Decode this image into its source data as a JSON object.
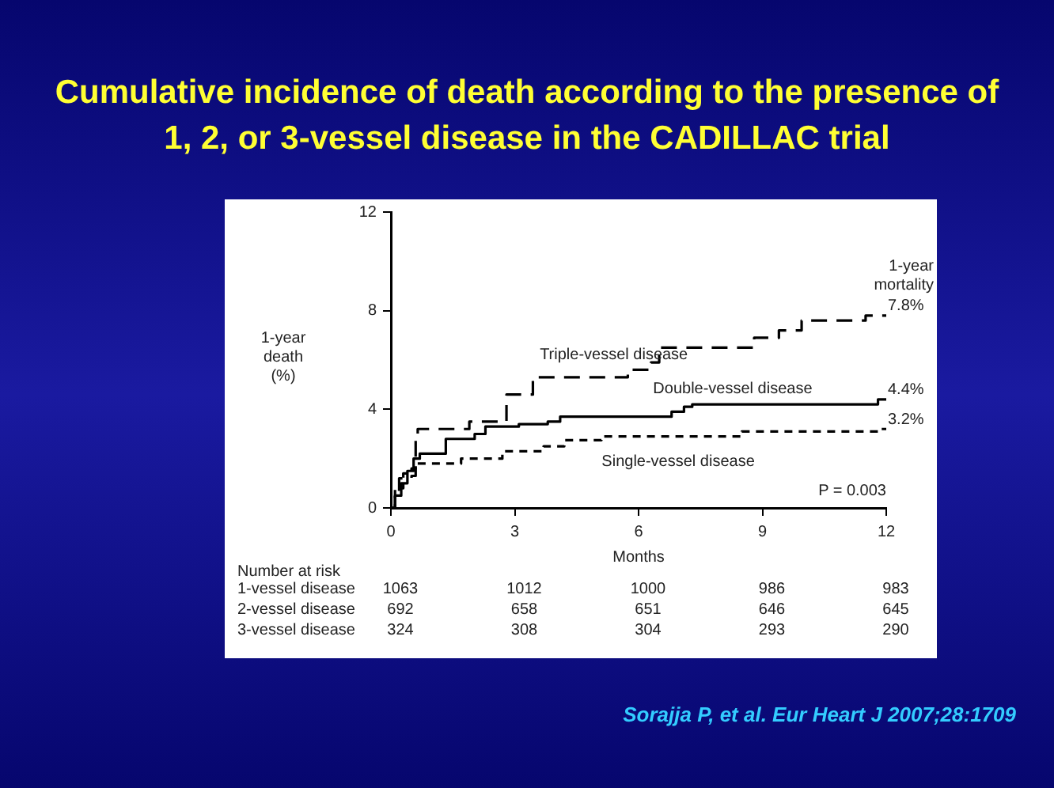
{
  "chart_data": {
    "type": "step",
    "title": "Cumulative incidence of death according to the presence of 1, 2, or 3-vessel disease in the CADILLAC trial",
    "xlabel": "Months",
    "ylabel": "1-year death (%)",
    "xlim": [
      0,
      12
    ],
    "xticks": [
      0,
      3,
      6,
      9,
      12
    ],
    "ylim": [
      0,
      12
    ],
    "yticks": [
      0,
      4,
      8,
      12
    ],
    "grid": false,
    "legend": false,
    "series": [
      {
        "name": "Triple-vessel disease",
        "color": "#000000",
        "line_style": "dashed",
        "x": [
          0,
          0.1,
          0.2,
          0.5,
          0.6,
          0.65,
          1.9,
          2.8,
          3.44,
          5.74,
          6.3,
          6.5,
          8.8,
          9.4,
          9.95,
          11.5,
          12
        ],
        "values": [
          0,
          0.6,
          1.2,
          1.3,
          2.8,
          3.2,
          3.5,
          4.6,
          5.3,
          5.6,
          5.9,
          6.5,
          6.9,
          7.2,
          7.6,
          7.8,
          7.8
        ],
        "value_labels": [
          null,
          null,
          null,
          null,
          null,
          null,
          null,
          null,
          null,
          null,
          null,
          null,
          null,
          null,
          null,
          null,
          "7.8%"
        ]
      },
      {
        "name": "Double-vessel disease",
        "color": "#000000",
        "line_style": "solid",
        "x": [
          0,
          0.1,
          0.25,
          0.4,
          0.55,
          0.7,
          1.33,
          2.03,
          2.29,
          3.1,
          3.8,
          4.1,
          6.8,
          7.1,
          7.3,
          11.8,
          12
        ],
        "values": [
          0,
          0.5,
          1.0,
          1.5,
          2.0,
          2.2,
          2.8,
          3.0,
          3.3,
          3.4,
          3.5,
          3.7,
          3.9,
          4.1,
          4.2,
          4.4,
          4.4
        ],
        "value_labels": [
          null,
          null,
          null,
          null,
          null,
          null,
          null,
          null,
          null,
          null,
          null,
          null,
          null,
          null,
          null,
          null,
          "4.4%"
        ]
      },
      {
        "name": "Single-vessel disease",
        "color": "#000000",
        "line_style": "dotted",
        "x": [
          0,
          0.1,
          0.3,
          0.5,
          0.6,
          1.7,
          2.7,
          3.7,
          4.2,
          5.1,
          8.5,
          11.8,
          12
        ],
        "values": [
          0,
          0.8,
          1.4,
          1.6,
          1.8,
          2.0,
          2.3,
          2.5,
          2.75,
          2.9,
          3.1,
          3.2,
          3.2
        ],
        "value_labels": [
          null,
          null,
          null,
          null,
          null,
          null,
          null,
          null,
          null,
          null,
          null,
          null,
          "3.2%"
        ]
      }
    ],
    "annotations": [
      "1-year mortality",
      "P = 0.003",
      "Number at risk",
      "1-vessel disease",
      "1063",
      "1012",
      "1000",
      "986",
      "983",
      "2-vessel disease",
      "692",
      "658",
      "651",
      "646",
      "645",
      "3-vessel disease",
      "324",
      "308",
      "304",
      "293",
      "290",
      "Sorajja P, et al. Eur Heart J 2007;28:1709"
    ]
  }
}
